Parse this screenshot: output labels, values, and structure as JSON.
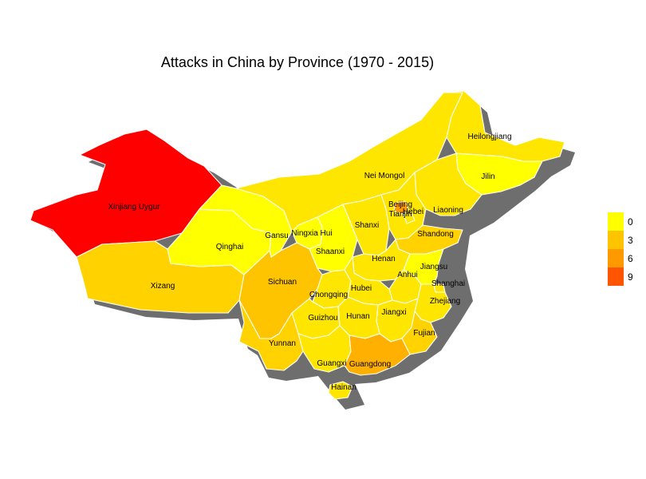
{
  "title": "Attacks in China by Province (1970 - 2015)",
  "colors": {
    "c0": "#ffff00",
    "c1": "#ffe600",
    "c2": "#ffd200",
    "c3": "#ffc400",
    "c5": "#ffb000",
    "c6": "#ff9900",
    "c9": "#ff5500",
    "cmax": "#ff0000",
    "shadow": "#6e6e6e",
    "border": "#ffffff"
  },
  "legend": {
    "labels": [
      "0",
      "3",
      "6",
      "9"
    ],
    "colors": [
      "#ffff00",
      "#ffc400",
      "#ff9900",
      "#ff5500"
    ]
  },
  "provinces": [
    {
      "name": "Xinjiang Uygur",
      "color": "#ff0000"
    },
    {
      "name": "Xizang",
      "color": "#ffd200"
    },
    {
      "name": "Qinghai",
      "color": "#ffff00"
    },
    {
      "name": "Gansu",
      "color": "#ffff00"
    },
    {
      "name": "Nei Mongol",
      "color": "#ffe600"
    },
    {
      "name": "Heilongjiang",
      "color": "#ffe600"
    },
    {
      "name": "Jilin",
      "color": "#ffff00"
    },
    {
      "name": "Liaoning",
      "color": "#ffe600"
    },
    {
      "name": "Beijing",
      "color": "#ff9900"
    },
    {
      "name": "Tianjin",
      "color": "#ffe600"
    },
    {
      "name": "Hebei",
      "color": "#ffe600"
    },
    {
      "name": "Shanxi",
      "color": "#ffe600"
    },
    {
      "name": "Shandong",
      "color": "#ffd200"
    },
    {
      "name": "Ningxia Hui",
      "color": "#ffff00"
    },
    {
      "name": "Shaanxi",
      "color": "#ffff00"
    },
    {
      "name": "Henan",
      "color": "#ffe600"
    },
    {
      "name": "Jiangsu",
      "color": "#ffff00"
    },
    {
      "name": "Anhui",
      "color": "#ffe600"
    },
    {
      "name": "Shanghai",
      "color": "#ffe600"
    },
    {
      "name": "Sichuan",
      "color": "#ffc400"
    },
    {
      "name": "Chongqing",
      "color": "#ffe600"
    },
    {
      "name": "Hubei",
      "color": "#ffe600"
    },
    {
      "name": "Zhejiang",
      "color": "#ffe600"
    },
    {
      "name": "Jiangxi",
      "color": "#ffe600"
    },
    {
      "name": "Hunan",
      "color": "#ffe600"
    },
    {
      "name": "Guizhou",
      "color": "#ffe600"
    },
    {
      "name": "Fujian",
      "color": "#ffd200"
    },
    {
      "name": "Yunnan",
      "color": "#ffd200"
    },
    {
      "name": "Guangxi",
      "color": "#ffe600"
    },
    {
      "name": "Guangdong",
      "color": "#ffb000"
    },
    {
      "name": "Hainan",
      "color": "#ffe600"
    }
  ]
}
